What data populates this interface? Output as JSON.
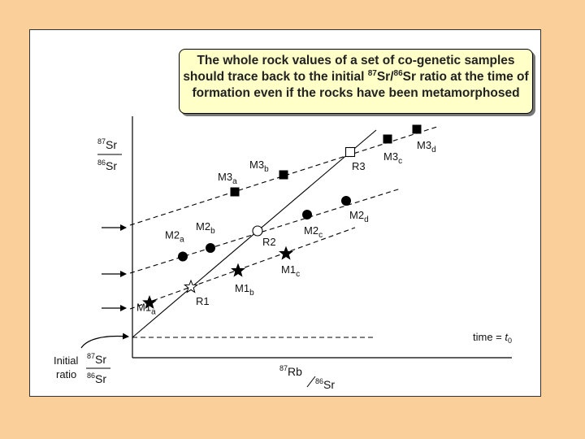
{
  "caption": {
    "line1": "The whole rock values of a set of co-genetic samples",
    "line2_before": "should trace back to the initial ",
    "line2_sup1": "87",
    "line2_mid1": "Sr/",
    "line2_sup2": "86",
    "line2_after": "Sr ratio at the time of",
    "line3": "formation even if the rocks have been metamorphosed"
  },
  "y_axis": {
    "num_sup": "87",
    "num": "Sr",
    "den_sup": "86",
    "den": "Sr"
  },
  "x_axis": {
    "num_sup": "87",
    "num": "Rb",
    "den_sup": "86",
    "den": "Sr"
  },
  "initial_ratio": {
    "line1": "Initial",
    "line2": "ratio",
    "num_sup": "87",
    "num": "Sr",
    "den_sup": "86",
    "den": "Sr"
  },
  "time_label": {
    "prefix": "time = ",
    "t": "t",
    "sub": "0"
  },
  "chart_data": {
    "type": "scatter",
    "isochron_time_t0": {
      "x": [
        0,
        300
      ],
      "y": [
        0,
        0
      ]
    },
    "whole_rock_isochron": {
      "x": [
        0,
        300
      ],
      "y": [
        0,
        255
      ]
    },
    "series": [
      {
        "name": "M1",
        "marker": "star",
        "line": {
          "x": [
            -3,
            274
          ],
          "y": [
            35,
            135
          ]
        },
        "points": [
          {
            "label": "M1",
            "sub": "a",
            "x": 21,
            "y": 42.6
          },
          {
            "label": "M1",
            "sub": "b",
            "x": 130,
            "y": 82
          },
          {
            "label": "M1",
            "sub": "c",
            "x": 189,
            "y": 103
          }
        ]
      },
      {
        "name": "M2",
        "marker": "circle",
        "line": {
          "x": [
            -3,
            330
          ],
          "y": [
            79,
            183
          ]
        },
        "points": [
          {
            "label": "M2",
            "sub": "a",
            "x": 62,
            "y": 99.5
          },
          {
            "label": "M2",
            "sub": "b",
            "x": 96,
            "y": 110
          },
          {
            "label": "M2",
            "sub": "c",
            "x": 215,
            "y": 151
          },
          {
            "label": "M2",
            "sub": "d",
            "x": 263,
            "y": 168
          }
        ]
      },
      {
        "name": "M3",
        "marker": "square",
        "line": {
          "x": [
            -3,
            378
          ],
          "y": [
            138,
            260
          ]
        },
        "points": [
          {
            "label": "M3",
            "sub": "a",
            "x": 126,
            "y": 179
          },
          {
            "label": "M3",
            "sub": "b",
            "x": 186,
            "y": 200
          },
          {
            "label": "M3",
            "sub": "c",
            "x": 314,
            "y": 244
          },
          {
            "label": "M3",
            "sub": "d",
            "x": 350,
            "y": 256
          }
        ]
      }
    ],
    "whole_rock_points": [
      {
        "label": "R1",
        "x": 72,
        "y": 62
      },
      {
        "label": "R2",
        "x": 154,
        "y": 131
      },
      {
        "label": "R3",
        "x": 268,
        "y": 228
      }
    ]
  }
}
